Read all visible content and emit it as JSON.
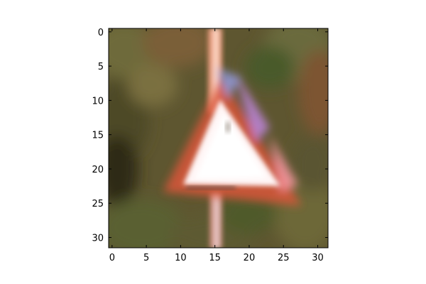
{
  "figure": {
    "background": "#ffffff",
    "frame_color": "#000000"
  },
  "image": {
    "subject": "triangular-warning-road-sign",
    "resolution": [
      32,
      32
    ],
    "palette": {
      "forest_dark": "#3b3a22",
      "forest_olive": "#6a6234",
      "forest_brown": "#7a5a36",
      "foliage_green": "#55602f",
      "sign_white": "#fff6f6",
      "sign_red": "#d9553a",
      "sign_pink": "#ff9aa8",
      "sign_violet": "#c58ae8",
      "sign_blue": "#9aa8ff",
      "pole_peach": "#f0a888"
    }
  },
  "axes": {
    "x_ticks": [
      "0",
      "5",
      "10",
      "15",
      "20",
      "25",
      "30"
    ],
    "y_ticks": [
      "0",
      "5",
      "10",
      "15",
      "20",
      "25",
      "30"
    ],
    "x_values": [
      0,
      5,
      10,
      15,
      20,
      25,
      30
    ],
    "y_values": [
      0,
      5,
      10,
      15,
      20,
      25,
      30
    ],
    "xlim": [
      -0.5,
      31.5
    ],
    "ylim": [
      31.5,
      -0.5
    ]
  }
}
